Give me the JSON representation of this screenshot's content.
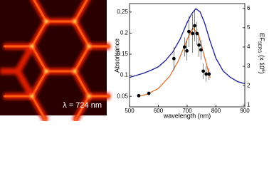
{
  "image": {
    "label": "λ = 724 nm"
  },
  "chart_data": {
    "type": "line",
    "xlabel": "wavelength (nm)",
    "ylabel": "Absorbance",
    "y2label": {
      "main": "EF",
      "sub": "SERS",
      "pre": "(x 10",
      "sup": "6",
      "post": ")"
    },
    "xlim": [
      500,
      900
    ],
    "xticks": [
      500,
      600,
      700,
      800,
      900
    ],
    "ylim": [
      0.025,
      0.27
    ],
    "yticks": [
      0.05,
      0.1,
      0.15,
      0.2,
      0.25
    ],
    "y2lim": [
      0.9,
      6.25
    ],
    "y2ticks": [
      1,
      2,
      3,
      4,
      5,
      6
    ],
    "series": [
      {
        "kind": "line",
        "color": "#1c1c96",
        "x": [
          500,
          525,
          550,
          575,
          600,
          625,
          650,
          675,
          700,
          715,
          730,
          745,
          760,
          780,
          800,
          825,
          850,
          875,
          900
        ],
        "values": [
          0.095,
          0.1,
          0.105,
          0.112,
          0.12,
          0.135,
          0.155,
          0.185,
          0.225,
          0.245,
          0.258,
          0.25,
          0.225,
          0.18,
          0.14,
          0.11,
          0.095,
          0.085,
          0.08
        ]
      },
      {
        "kind": "line",
        "color": "#e07030",
        "axis": "y2",
        "x": [
          530,
          560,
          600,
          640,
          670,
          700,
          720,
          740,
          760,
          780
        ],
        "values": [
          1.45,
          1.55,
          1.85,
          2.5,
          3.3,
          4.4,
          5.0,
          4.6,
          3.5,
          2.4
        ]
      },
      {
        "kind": "errorbar",
        "color": "#000000",
        "axis": "y2",
        "x": [
          532,
          567,
          654,
          691,
          699,
          706,
          719,
          726,
          734,
          741,
          748,
          756,
          766,
          776
        ],
        "values": [
          1.48,
          1.6,
          3.4,
          4.0,
          3.8,
          4.8,
          4.7,
          5.1,
          4.7,
          4.1,
          3.85,
          2.75,
          2.6,
          2.6
        ],
        "errors": [
          0.05,
          0.05,
          0.6,
          0.5,
          0.5,
          0.8,
          1.0,
          0.8,
          0.6,
          0.6,
          0.5,
          0.4,
          0.4,
          0.3
        ]
      }
    ]
  }
}
